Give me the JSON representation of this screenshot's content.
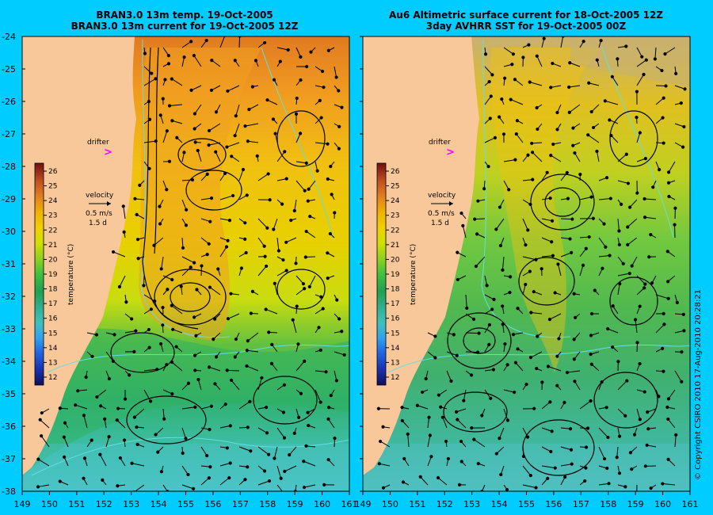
{
  "left_panel": {
    "title_line1": "BRAN3.0 13m temp. 19-Oct-2005",
    "title_line2": "BRAN3.0 13m current for 19-Oct-2005 12Z"
  },
  "right_panel": {
    "title_line1": "Au6 Altimetric surface current for 18-Oct-2005 12Z",
    "title_line2": "3day AVHRR SST for 19-Oct-2005 00Z"
  },
  "legend": {
    "drifter_label": "drifter",
    "velocity_label": "velocity",
    "speed_label": "0.5 m/s",
    "days_label": "1.5 d",
    "colorbar_title": "temperature (°C)",
    "colorbar_ticks": [
      "12",
      "13",
      "14",
      "15",
      "16",
      "17",
      "18",
      "19",
      "20",
      "21",
      "22",
      "23",
      "24",
      "25",
      "26"
    ],
    "colorbar_colors": [
      "#10105a",
      "#1a30b0",
      "#2060e0",
      "#30a0f0",
      "#40c0c0",
      "#30b090",
      "#20a050",
      "#40c040",
      "#90d020",
      "#d0e000",
      "#f0d000",
      "#f0b000",
      "#e08020",
      "#c05020",
      "#902010",
      "#701010"
    ]
  },
  "axes": {
    "lat_ticks": [
      "-24",
      "-25",
      "-26",
      "-27",
      "-28",
      "-29",
      "-30",
      "-31",
      "-32",
      "-33",
      "-34",
      "-35",
      "-36",
      "-37",
      "-38"
    ],
    "lon_ticks": [
      "149",
      "150",
      "151",
      "152",
      "153",
      "154",
      "155",
      "156",
      "157",
      "158",
      "159",
      "160",
      "161"
    ]
  },
  "copyright": "© Copyright CSIRO 2010   17-Aug-2010 20:28:21",
  "colors": {
    "background": "#00ccff",
    "land": "#f8c89a",
    "drifter": "#ff00ff",
    "contour": "#60e0e0"
  }
}
